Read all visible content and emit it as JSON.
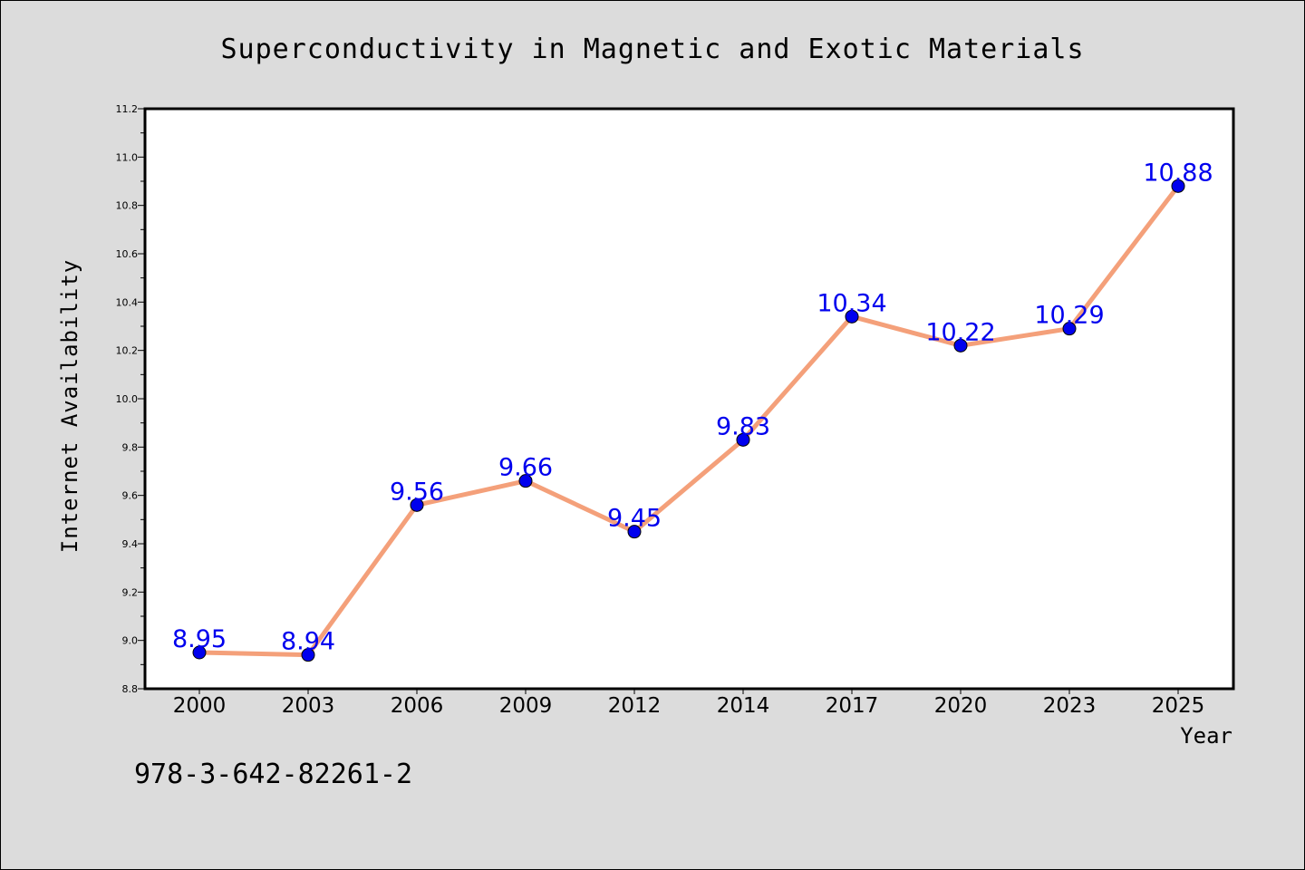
{
  "chart_data": {
    "type": "line",
    "title": "Superconductivity in Magnetic and Exotic Materials",
    "xlabel": "Year",
    "ylabel": "Internet Availability",
    "categories": [
      "2000",
      "2003",
      "2006",
      "2009",
      "2012",
      "2014",
      "2017",
      "2020",
      "2023",
      "2025"
    ],
    "values": [
      8.95,
      8.94,
      9.56,
      9.66,
      9.45,
      9.83,
      10.34,
      10.22,
      10.29,
      10.88
    ],
    "data_labels": [
      "8.95",
      "8.94",
      "9.56",
      "9.66",
      "9.45",
      "9.83",
      "10.34",
      "10.22",
      "10.29",
      "10.88"
    ],
    "ylim": [
      8.8,
      11.2
    ],
    "yticks": [
      "8.8",
      "9.0",
      "9.2",
      "9.4",
      "9.6",
      "9.8",
      "10.0",
      "10.2",
      "10.4",
      "10.6",
      "10.8",
      "11.0",
      "11.2"
    ],
    "grid": false,
    "legend": "none",
    "annotation": "978-3-642-82261-2",
    "colors": {
      "line": "#f4a07a",
      "marker": "#0000ee",
      "data_label": "#0000ee",
      "background": "#dcdcdc",
      "plot_area": "#ffffff"
    }
  }
}
